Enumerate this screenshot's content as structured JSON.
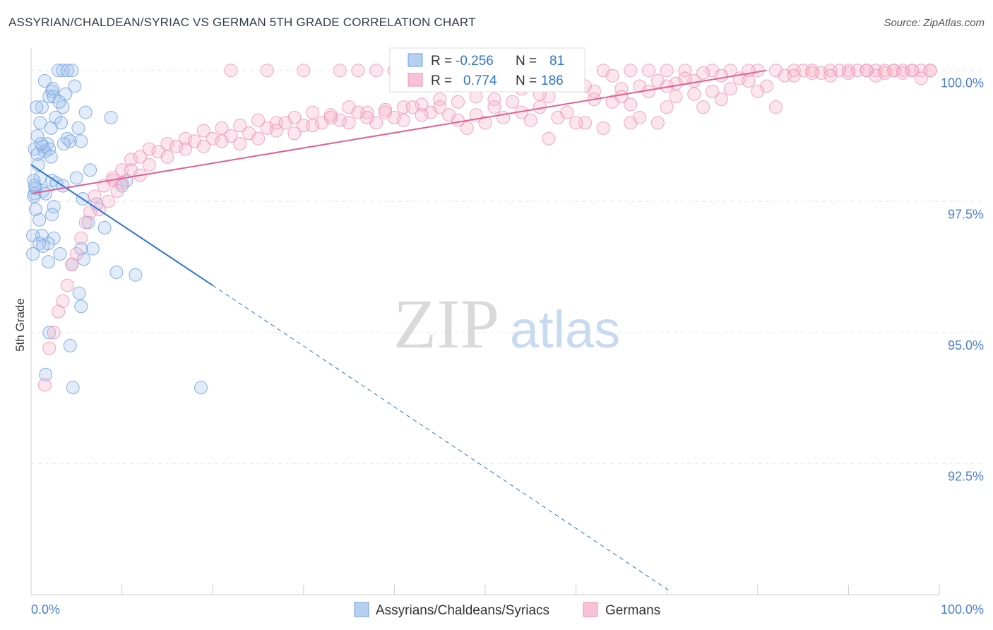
{
  "header": {
    "title": "ASSYRIAN/CHALDEAN/SYRIAC VS GERMAN 5TH GRADE CORRELATION CHART",
    "source": "Source: ZipAtlas.com"
  },
  "watermark": {
    "zip": "ZIP",
    "atlas": "atlas"
  },
  "stats": {
    "r_label": "R =",
    "n_label": "N =",
    "series": [
      {
        "r": "-0.256",
        "n": "81"
      },
      {
        "r": "0.774",
        "n": "186"
      }
    ]
  },
  "legend": {
    "labels": [
      "Assyrians/Chaldeans/Syriacs",
      "Germans"
    ],
    "placement": "bottom-center"
  },
  "colors": {
    "blue": "#6a9fe0",
    "blue_line": "#2f74d0",
    "pink": "#ef8fb3",
    "pink_line": "#e06090",
    "tick_text": "#4a7fd0"
  },
  "chart_data": {
    "type": "scatter",
    "title": "ASSYRIAN/CHALDEAN/SYRIAC VS GERMAN 5TH GRADE CORRELATION CHART",
    "xlabel": "",
    "ylabel": "5th Grade",
    "xlim": [
      0,
      100
    ],
    "ylim": [
      90.0,
      100.4
    ],
    "x_ticks": [
      "0.0%",
      "100.0%"
    ],
    "y_ticks": [
      {
        "value": 100.0,
        "label": "100.0%"
      },
      {
        "value": 97.5,
        "label": "97.5%"
      },
      {
        "value": 95.0,
        "label": "95.0%"
      },
      {
        "value": 92.5,
        "label": "92.5%"
      }
    ],
    "grid": true,
    "series": [
      {
        "name": "Assyrians/Chaldeans/Syriacs",
        "r": -0.256,
        "n": 81,
        "trend": {
          "x0": 0,
          "y0": 98.2,
          "x1": 20,
          "y1": 95.9,
          "dash_to_x": 70.5,
          "dash_to_y": 90.05
        },
        "points": [
          [
            3,
            100
          ],
          [
            4.5,
            100
          ],
          [
            3.5,
            100
          ],
          [
            4,
            100
          ],
          [
            1.5,
            99.8
          ],
          [
            4.8,
            99.7
          ],
          [
            2.3,
            99.6
          ],
          [
            2,
            99.5
          ],
          [
            3.8,
            99.55
          ],
          [
            2.5,
            99.5
          ],
          [
            1.2,
            99.3
          ],
          [
            3.5,
            99.3
          ],
          [
            6,
            99.2
          ],
          [
            2.7,
            99.1
          ],
          [
            8.8,
            99.1
          ],
          [
            1,
            99
          ],
          [
            3.3,
            99
          ],
          [
            2.2,
            98.9
          ],
          [
            0.7,
            98.75
          ],
          [
            4,
            98.7
          ],
          [
            4.3,
            98.65
          ],
          [
            5.5,
            98.65
          ],
          [
            1.8,
            98.6
          ],
          [
            1.3,
            98.55
          ],
          [
            2,
            98.5
          ],
          [
            0.4,
            98.5
          ],
          [
            1.5,
            98.45
          ],
          [
            0.7,
            98.4
          ],
          [
            2.2,
            98.35
          ],
          [
            0.8,
            98.2
          ],
          [
            6.5,
            98.1
          ],
          [
            1,
            97.95
          ],
          [
            0.3,
            97.9
          ],
          [
            2.3,
            97.9
          ],
          [
            5,
            97.95
          ],
          [
            10.5,
            97.9
          ],
          [
            2.8,
            97.85
          ],
          [
            3.5,
            97.8
          ],
          [
            0.5,
            97.75
          ],
          [
            1.3,
            97.7
          ],
          [
            0.4,
            97.65
          ],
          [
            1.6,
            97.65
          ],
          [
            0.3,
            97.6
          ],
          [
            5.7,
            97.55
          ],
          [
            2.5,
            97.4
          ],
          [
            0.5,
            97.35
          ],
          [
            2.3,
            97.25
          ],
          [
            0.9,
            97.15
          ],
          [
            6.3,
            97.1
          ],
          [
            10,
            97.8
          ],
          [
            1.2,
            96.85
          ],
          [
            0.2,
            96.85
          ],
          [
            2.5,
            96.8
          ],
          [
            1.9,
            96.7
          ],
          [
            0.9,
            96.7
          ],
          [
            1.3,
            96.65
          ],
          [
            6.8,
            96.6
          ],
          [
            5.5,
            96.6
          ],
          [
            0.2,
            96.5
          ],
          [
            3.2,
            96.5
          ],
          [
            5.8,
            96.4
          ],
          [
            4.5,
            96.3
          ],
          [
            9.4,
            96.15
          ],
          [
            11.5,
            96.1
          ],
          [
            5.3,
            95.75
          ],
          [
            5.5,
            95.5
          ],
          [
            2,
            95.0
          ],
          [
            4.3,
            94.75
          ],
          [
            1.6,
            94.2
          ],
          [
            4.6,
            93.95
          ],
          [
            18.7,
            93.95
          ],
          [
            0.4,
            97.8
          ],
          [
            1.1,
            98.6
          ],
          [
            2.4,
            99.65
          ],
          [
            3.1,
            99.4
          ],
          [
            0.6,
            99.3
          ],
          [
            5.2,
            98.9
          ],
          [
            7.2,
            97.45
          ],
          [
            1.9,
            96.35
          ],
          [
            3.6,
            98.6
          ],
          [
            8.1,
            97.0
          ]
        ]
      },
      {
        "name": "Germans",
        "r": 0.774,
        "n": 186,
        "trend": {
          "x0": 0,
          "y0": 97.65,
          "x1": 81,
          "y1": 100.0
        },
        "points": [
          [
            72,
            100
          ],
          [
            75,
            100
          ],
          [
            77,
            100
          ],
          [
            80,
            100
          ],
          [
            82,
            100
          ],
          [
            84,
            100
          ],
          [
            85,
            100
          ],
          [
            86,
            100
          ],
          [
            88,
            100
          ],
          [
            90,
            100
          ],
          [
            91,
            100
          ],
          [
            92,
            100
          ],
          [
            93,
            100
          ],
          [
            94,
            100
          ],
          [
            95,
            100
          ],
          [
            96,
            100
          ],
          [
            97,
            100
          ],
          [
            98,
            100
          ],
          [
            99,
            100
          ],
          [
            70,
            100
          ],
          [
            68,
            100
          ],
          [
            66,
            100
          ],
          [
            63,
            100
          ],
          [
            60,
            100
          ],
          [
            58,
            100
          ],
          [
            55,
            100
          ],
          [
            53,
            100
          ],
          [
            52,
            100
          ],
          [
            50,
            100
          ],
          [
            48,
            100
          ],
          [
            46,
            100
          ],
          [
            44,
            100
          ],
          [
            42,
            100
          ],
          [
            40,
            100
          ],
          [
            38,
            100
          ],
          [
            36,
            100
          ],
          [
            34,
            100
          ],
          [
            30,
            100
          ],
          [
            26,
            100
          ],
          [
            22,
            100
          ],
          [
            78,
            99.85
          ],
          [
            76,
            99.9
          ],
          [
            74,
            99.95
          ],
          [
            73,
            99.8
          ],
          [
            71,
            99.75
          ],
          [
            69,
            99.8
          ],
          [
            67,
            99.7
          ],
          [
            65,
            99.65
          ],
          [
            64,
            99.9
          ],
          [
            62,
            99.6
          ],
          [
            61,
            99.7
          ],
          [
            59,
            99.75
          ],
          [
            57,
            99.5
          ],
          [
            56,
            99.55
          ],
          [
            54,
            99.65
          ],
          [
            51,
            99.45
          ],
          [
            49,
            99.5
          ],
          [
            47,
            99.4
          ],
          [
            45,
            99.45
          ],
          [
            43,
            99.35
          ],
          [
            41,
            99.3
          ],
          [
            39,
            99.25
          ],
          [
            37,
            99.2
          ],
          [
            35,
            99.3
          ],
          [
            33,
            99.15
          ],
          [
            31,
            99.2
          ],
          [
            29,
            99.1
          ],
          [
            27,
            99.0
          ],
          [
            25,
            99.05
          ],
          [
            23,
            98.95
          ],
          [
            21,
            98.9
          ],
          [
            19,
            98.85
          ],
          [
            17,
            98.7
          ],
          [
            15,
            98.6
          ],
          [
            13,
            98.5
          ],
          [
            11,
            98.3
          ],
          [
            10,
            98.1
          ],
          [
            9,
            97.9
          ],
          [
            8,
            97.8
          ],
          [
            7,
            97.6
          ],
          [
            6.5,
            97.3
          ],
          [
            6,
            97.1
          ],
          [
            5.5,
            96.8
          ],
          [
            5,
            96.5
          ],
          [
            4.5,
            96.3
          ],
          [
            4,
            95.9
          ],
          [
            3.5,
            95.6
          ],
          [
            3,
            95.4
          ],
          [
            2.5,
            95.0
          ],
          [
            2,
            94.7
          ],
          [
            1.5,
            94.0
          ],
          [
            98,
            99.85
          ],
          [
            87,
            99.95
          ],
          [
            83,
            99.9
          ],
          [
            79,
            100
          ],
          [
            81,
            99.7
          ],
          [
            89,
            100
          ],
          [
            93,
            99.9
          ],
          [
            96,
            99.95
          ],
          [
            99,
            100
          ],
          [
            95,
            100
          ],
          [
            66,
            99.0
          ],
          [
            63,
            98.9
          ],
          [
            48,
            98.9
          ],
          [
            58,
            99.1
          ],
          [
            61,
            99.0
          ],
          [
            64,
            99.4
          ],
          [
            68,
            99.6
          ],
          [
            70,
            99.3
          ],
          [
            72,
            99.85
          ],
          [
            54,
            99.2
          ],
          [
            52,
            99.1
          ],
          [
            50,
            99.0
          ],
          [
            46,
            99.15
          ],
          [
            44,
            99.2
          ],
          [
            42,
            99.3
          ],
          [
            40,
            99.1
          ],
          [
            38,
            99.0
          ],
          [
            36,
            99.2
          ],
          [
            34,
            99.05
          ],
          [
            32,
            99.0
          ],
          [
            30,
            98.95
          ],
          [
            28,
            99.0
          ],
          [
            26,
            98.9
          ],
          [
            24,
            98.8
          ],
          [
            22,
            98.75
          ],
          [
            20,
            98.7
          ],
          [
            18,
            98.65
          ],
          [
            16,
            98.55
          ],
          [
            14,
            98.45
          ],
          [
            12,
            98.35
          ],
          [
            11,
            98.1
          ],
          [
            10,
            97.85
          ],
          [
            9.5,
            97.7
          ],
          [
            8.5,
            97.5
          ],
          [
            7.5,
            97.35
          ],
          [
            56,
            99.3
          ],
          [
            59,
            99.2
          ],
          [
            62,
            99.45
          ],
          [
            65,
            99.5
          ],
          [
            67,
            99.1
          ],
          [
            69,
            99.0
          ],
          [
            71,
            99.5
          ],
          [
            73,
            99.55
          ],
          [
            75,
            99.6
          ],
          [
            77,
            99.65
          ],
          [
            79,
            99.8
          ],
          [
            82,
            99.3
          ],
          [
            84,
            99.9
          ],
          [
            86,
            99.95
          ],
          [
            88,
            99.9
          ],
          [
            90,
            99.95
          ],
          [
            92,
            100
          ],
          [
            94,
            99.95
          ],
          [
            97,
            100
          ],
          [
            53,
            99.4
          ],
          [
            51,
            99.3
          ],
          [
            49,
            99.15
          ],
          [
            47,
            99.05
          ],
          [
            45,
            99.3
          ],
          [
            43,
            99.15
          ],
          [
            41,
            99.05
          ],
          [
            39,
            99.2
          ],
          [
            37,
            99.1
          ],
          [
            35,
            99.0
          ],
          [
            33,
            99.1
          ],
          [
            31,
            98.95
          ],
          [
            29,
            98.8
          ],
          [
            27,
            98.85
          ],
          [
            25,
            98.7
          ],
          [
            23,
            98.6
          ],
          [
            21,
            98.65
          ],
          [
            19,
            98.55
          ],
          [
            17,
            98.5
          ],
          [
            15,
            98.35
          ],
          [
            13,
            98.2
          ],
          [
            12,
            98.0
          ],
          [
            9,
            97.95
          ],
          [
            74,
            99.3
          ],
          [
            57,
            98.7
          ],
          [
            60,
            99.0
          ],
          [
            55,
            99.05
          ],
          [
            66,
            99.35
          ],
          [
            70,
            99.7
          ],
          [
            76,
            99.45
          ],
          [
            80,
            99.6
          ]
        ]
      }
    ]
  }
}
